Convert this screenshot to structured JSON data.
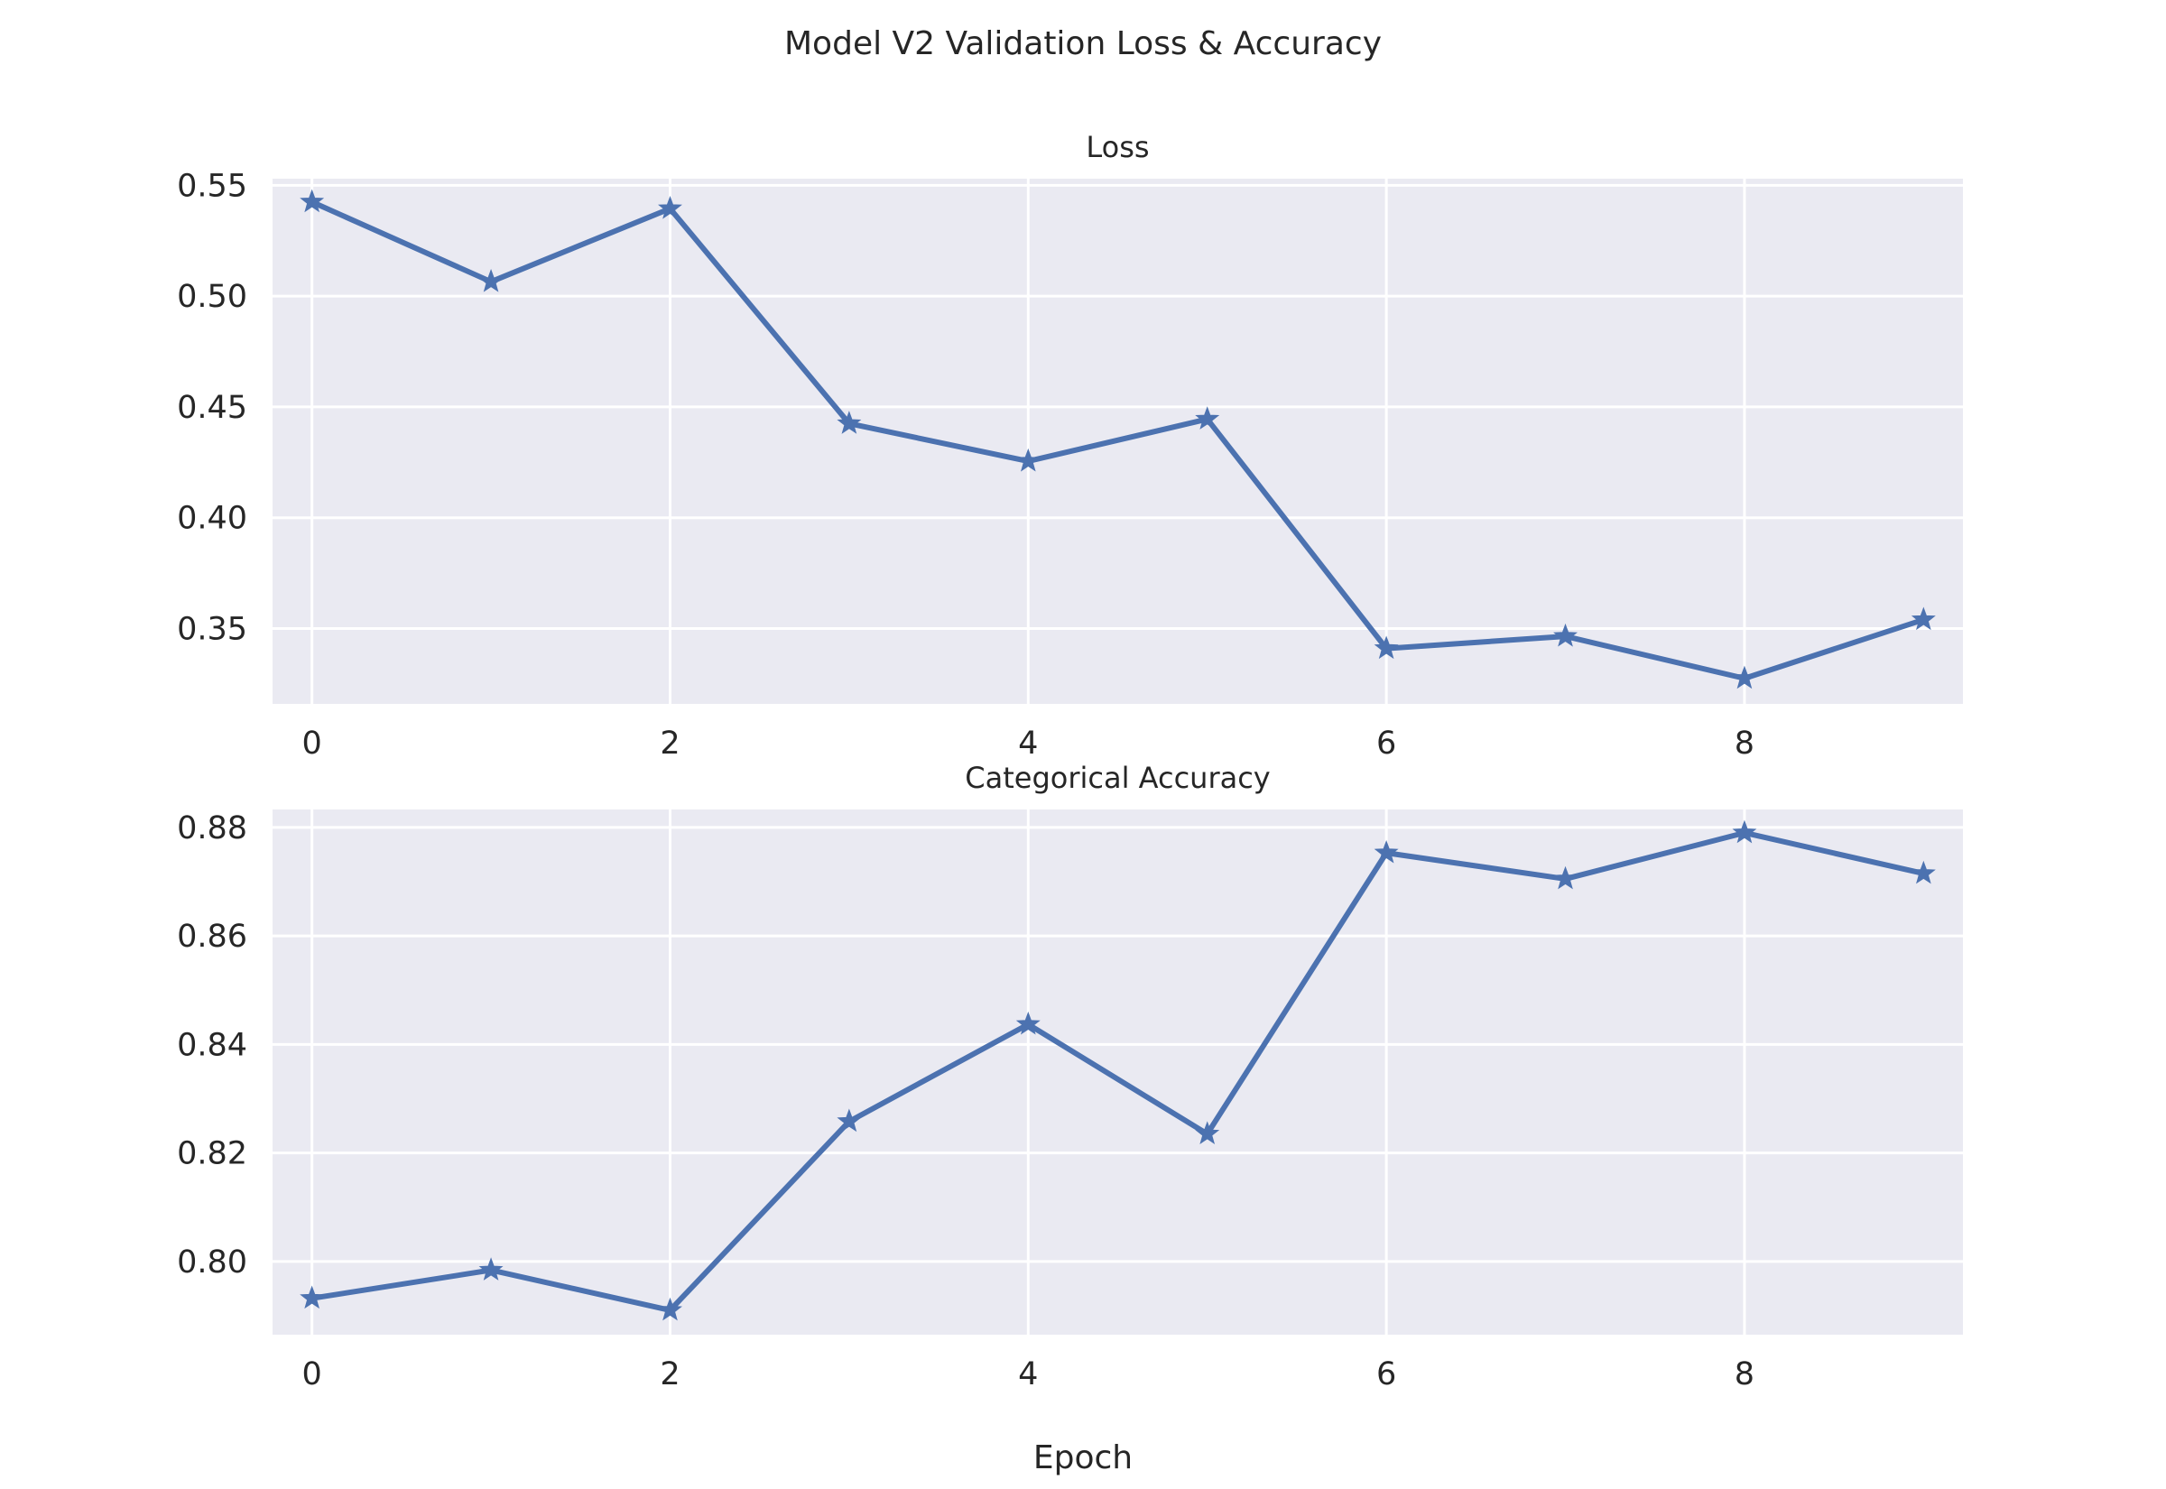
{
  "figure": {
    "suptitle": "Model V2 Validation Loss & Accuracy",
    "xlabel": "Epoch",
    "background": "#ffffff",
    "axes_background": "#eaeaf2",
    "grid_color": "#ffffff",
    "line_color": "#4c72b0"
  },
  "chart_data": [
    {
      "type": "line",
      "title": "Loss",
      "xlabel": "",
      "ylabel": "",
      "x": [
        0,
        1,
        2,
        3,
        4,
        5,
        6,
        7,
        8,
        9
      ],
      "series": [
        {
          "values": [
            0.5425,
            0.5065,
            0.5395,
            0.4425,
            0.4255,
            0.4445,
            0.341,
            0.3465,
            0.3275,
            0.354
          ]
        }
      ],
      "xlim": [
        -0.22,
        9.22
      ],
      "ylim": [
        0.316,
        0.553
      ],
      "xticks": [
        0,
        2,
        4,
        6,
        8
      ],
      "yticks": [
        0.35,
        0.4,
        0.45,
        0.5,
        0.55
      ],
      "xtick_labels": [
        "0",
        "2",
        "4",
        "6",
        "8"
      ],
      "ytick_labels": [
        "0.35",
        "0.40",
        "0.45",
        "0.50",
        "0.55"
      ],
      "marker": "star",
      "grid": true
    },
    {
      "type": "line",
      "title": "Categorical Accuracy",
      "xlabel": "",
      "ylabel": "",
      "x": [
        0,
        1,
        2,
        3,
        4,
        5,
        6,
        7,
        8,
        9
      ],
      "series": [
        {
          "values": [
            0.7932,
            0.7984,
            0.791,
            0.8258,
            0.8437,
            0.8235,
            0.8753,
            0.8705,
            0.879,
            0.8715
          ]
        }
      ],
      "xlim": [
        -0.22,
        9.22
      ],
      "ylim": [
        0.7865,
        0.8833
      ],
      "xticks": [
        0,
        2,
        4,
        6,
        8
      ],
      "yticks": [
        0.8,
        0.82,
        0.84,
        0.86,
        0.88
      ],
      "xtick_labels": [
        "0",
        "2",
        "4",
        "6",
        "8"
      ],
      "ytick_labels": [
        "0.80",
        "0.82",
        "0.84",
        "0.86",
        "0.88"
      ],
      "marker": "star",
      "grid": true
    }
  ]
}
